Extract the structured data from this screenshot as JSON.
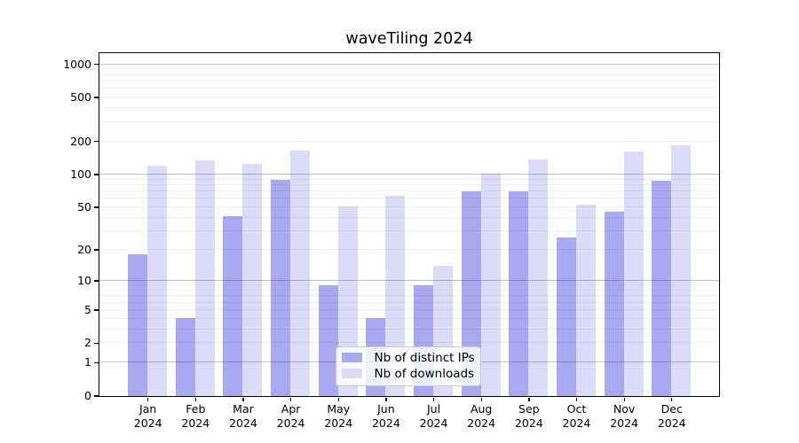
{
  "title": "waveTiling 2024",
  "chart_data": {
    "type": "bar",
    "title": "waveTiling 2024",
    "categories": [
      "Jan",
      "Feb",
      "Mar",
      "Apr",
      "May",
      "Jun",
      "Jul",
      "Aug",
      "Sep",
      "Oct",
      "Nov",
      "Dec"
    ],
    "category_year": "2024",
    "series": [
      {
        "name": "Nb of distinct IPs",
        "color": "#a9a9f1",
        "values": [
          18,
          4,
          41,
          89,
          9,
          4,
          9,
          69,
          69,
          26,
          45,
          87
        ]
      },
      {
        "name": "Nb of downloads",
        "color": "#dddcf8",
        "values": [
          120,
          134,
          123,
          163,
          50,
          63,
          14,
          101,
          135,
          52,
          160,
          182
        ]
      }
    ],
    "yscale": "log1p",
    "ylim": [
      0,
      1240
    ],
    "y_ticks": [
      "0",
      "1",
      "2",
      "5",
      "10",
      "20",
      "50",
      "100",
      "200",
      "500",
      "1000"
    ],
    "grid": "horizontal, major and minor",
    "legend_position": "lower center"
  },
  "colors": {
    "bar_distinct_ips": "#a9a9f1",
    "bar_downloads": "#dddcf8",
    "grid_major": "rgba(0,0,0,0.23)",
    "grid_minor": "rgba(0,0,0,0.055)",
    "axis": "#000000",
    "legend_border": "#cbcbcb"
  }
}
